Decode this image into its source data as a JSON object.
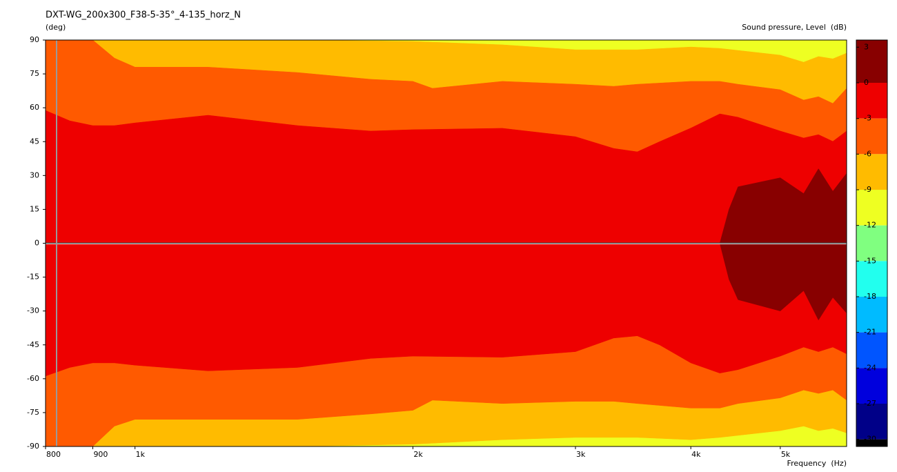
{
  "chart_data": {
    "type": "contour",
    "title": "DXT-WG_200x300_F38-5-35°_4-135_horz_N",
    "ylabel": "(deg)",
    "xlabel": "Frequency  (Hz)",
    "colorbar_label": "Sound pressure, Level  (dB)",
    "xscale": "log",
    "xlim": [
      800,
      5900
    ],
    "xticks": [
      800,
      900,
      {
        "value": 1000,
        "label": "1k"
      },
      {
        "value": 2000,
        "label": "2k"
      },
      {
        "value": 3000,
        "label": "3k"
      },
      {
        "value": 4000,
        "label": "4k"
      },
      {
        "value": 5000,
        "label": "5k"
      }
    ],
    "ylim": [
      -90,
      90
    ],
    "yticks": [
      90,
      75,
      60,
      45,
      30,
      15,
      0,
      -15,
      -30,
      -45,
      -60,
      -75,
      -90
    ],
    "colorbar": {
      "clim": [
        -30.6,
        3.6
      ],
      "ticks": [
        3,
        0,
        -3,
        -6,
        -9,
        -12,
        -15,
        -18,
        -21,
        -24,
        -27,
        -30
      ],
      "bounds": [
        0,
        -3,
        -6,
        -9,
        -12,
        -15,
        -18,
        -21,
        -24,
        -27,
        -30
      ],
      "colors": [
        "#880000",
        "#ee0000",
        "#ff5a00",
        "#ffbb00",
        "#eeff22",
        "#80ff80",
        "#22ffee",
        "#00bbff",
        "#0055ff",
        "#0000dd",
        "#000088",
        "#000000"
      ]
    },
    "contours": [
      {
        "level": -9,
        "x": [
          800,
          900,
          950,
          1000,
          1500,
          2000,
          2500,
          3000,
          3500,
          4000,
          4300,
          5000,
          5300,
          5500,
          5700,
          5900
        ],
        "upper": [
          90,
          90,
          90,
          90,
          90,
          89.4,
          87.9,
          85.7,
          85.7,
          86.9,
          86.3,
          83.3,
          80.2,
          82.7,
          81.7,
          84.2
        ],
        "lower": [
          -90,
          -90,
          -90,
          -90,
          -90,
          -89,
          -87,
          -86,
          -86,
          -87,
          -86,
          -83,
          -81,
          -83,
          -82,
          -84
        ]
      },
      {
        "level": -6,
        "x": [
          800,
          900,
          950,
          1000,
          1200,
          1500,
          1800,
          2000,
          2100,
          2500,
          3000,
          3300,
          3500,
          4000,
          4300,
          4500,
          5000,
          5300,
          5500,
          5700,
          5900
        ],
        "upper": [
          90,
          90,
          82,
          78,
          78,
          75.6,
          72.6,
          71.7,
          68.6,
          71.7,
          70.4,
          69.5,
          70.4,
          71.7,
          71.7,
          70.4,
          68,
          63.4,
          64.9,
          61.9,
          68.6
        ],
        "lower": [
          -90,
          -90,
          -81,
          -78,
          -78,
          -78,
          -75.6,
          -74,
          -69.5,
          -71,
          -70,
          -70,
          -71,
          -73,
          -73,
          -71,
          -68.5,
          -65,
          -66.5,
          -65,
          -69.5
        ]
      },
      {
        "level": -3,
        "x": [
          800,
          850,
          900,
          950,
          1000,
          1200,
          1500,
          1800,
          2000,
          2500,
          3000,
          3300,
          3500,
          3700,
          4000,
          4300,
          4500,
          5000,
          5300,
          5500,
          5700,
          5900
        ],
        "upper": [
          58.8,
          54.2,
          52.1,
          52.1,
          53.3,
          56.7,
          52.1,
          49.7,
          50.3,
          50.9,
          47.2,
          42,
          40.5,
          45,
          51,
          57.3,
          55.8,
          49.7,
          46.6,
          48.1,
          45.1,
          49.7
        ],
        "lower": [
          -58.8,
          -55,
          -53,
          -53,
          -54,
          -56.5,
          -55,
          -51,
          -50,
          -50.5,
          -48,
          -42,
          -41,
          -45,
          -53,
          -57.5,
          -56,
          -50,
          -46,
          -48,
          -46,
          -49
        ]
      },
      {
        "level": 0,
        "x": [
          4300,
          4400,
          4500,
          5000,
          5300,
          5500,
          5700,
          5900
        ],
        "upper": [
          0,
          15,
          25,
          29,
          22,
          33,
          23,
          31
        ],
        "lower": [
          0,
          -16,
          -25,
          -30,
          -21,
          -34,
          -24,
          -31
        ]
      }
    ]
  }
}
